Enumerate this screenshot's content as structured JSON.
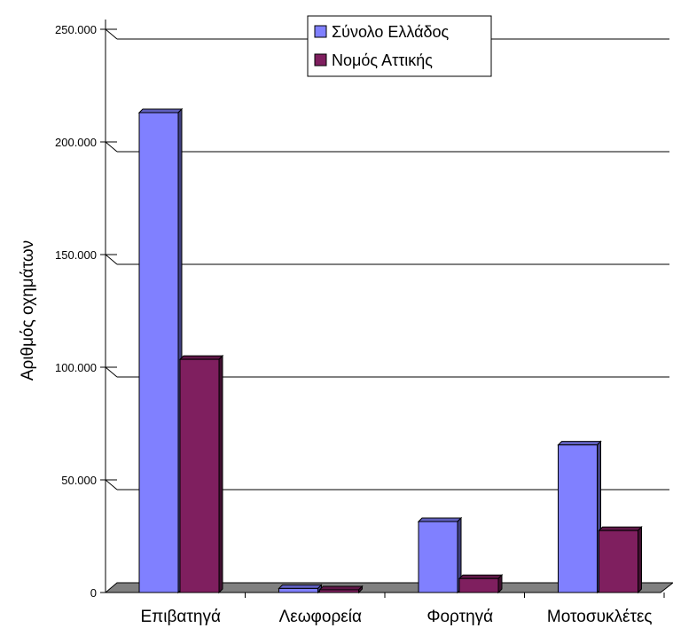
{
  "chart_data": {
    "type": "bar",
    "categories": [
      "Επιβατηγά",
      "Λεωφορεία",
      "Φορτηγά",
      "Μοτοσυκλέτες"
    ],
    "series": [
      {
        "name": "Σύνολο Ελλάδος",
        "values": [
          213000,
          1800,
          31500,
          65500
        ],
        "color": "#8080ff"
      },
      {
        "name": "Νομός Αττικής",
        "values": [
          103500,
          1200,
          6200,
          27500
        ],
        "color": "#7f1f5f"
      }
    ],
    "ylabel": "Αριθμός οχημάτων",
    "ylim": [
      0,
      250000
    ],
    "yticks": [
      "0",
      "50.000",
      "100.000",
      "150.000",
      "200.000",
      "250.000"
    ],
    "legend_position": "top-center",
    "grid": true,
    "style": "3d-bar",
    "floor_color": "#808080"
  }
}
